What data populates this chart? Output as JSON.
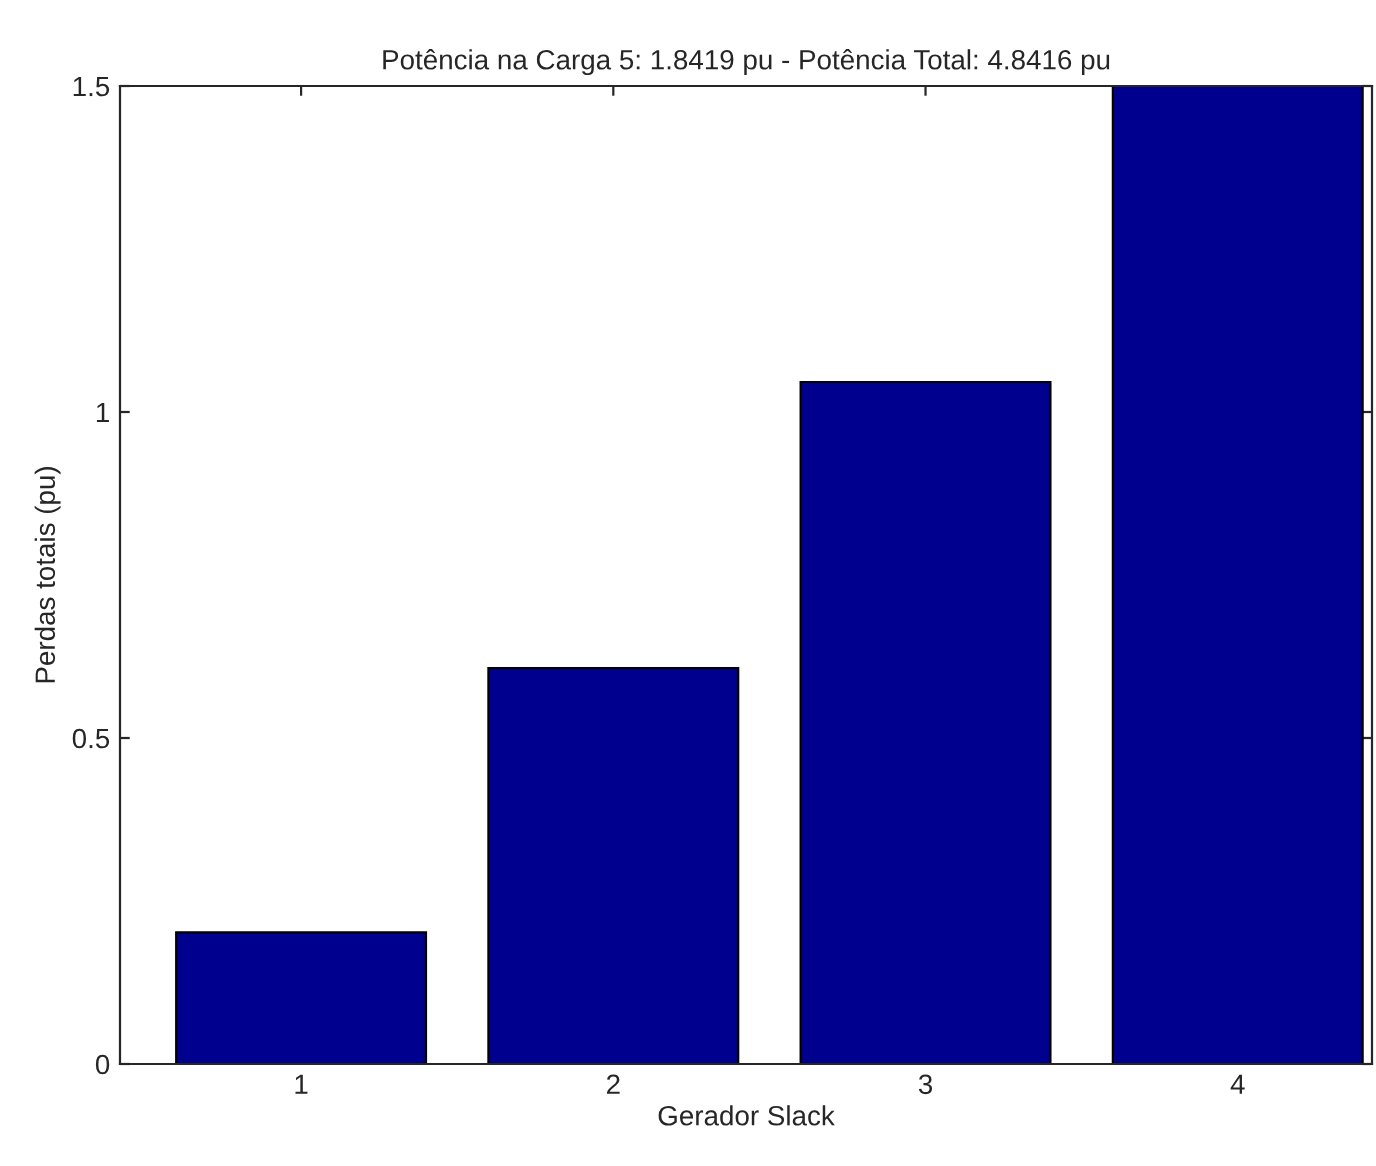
{
  "chart_data": {
    "type": "bar",
    "title": "Potência na Carga 5: 1.8419 pu - Potência Total: 4.8416 pu",
    "xlabel": "Gerador Slack",
    "ylabel": "Perdas totais (pu)",
    "categories": [
      "1",
      "2",
      "3",
      "4"
    ],
    "values": [
      0.202,
      0.607,
      1.046,
      1.5
    ],
    "color": "#00008f",
    "ylim": [
      0,
      1.5
    ],
    "yticks": [
      0,
      0.5,
      1,
      1.5
    ],
    "grid": false,
    "legend": false
  }
}
